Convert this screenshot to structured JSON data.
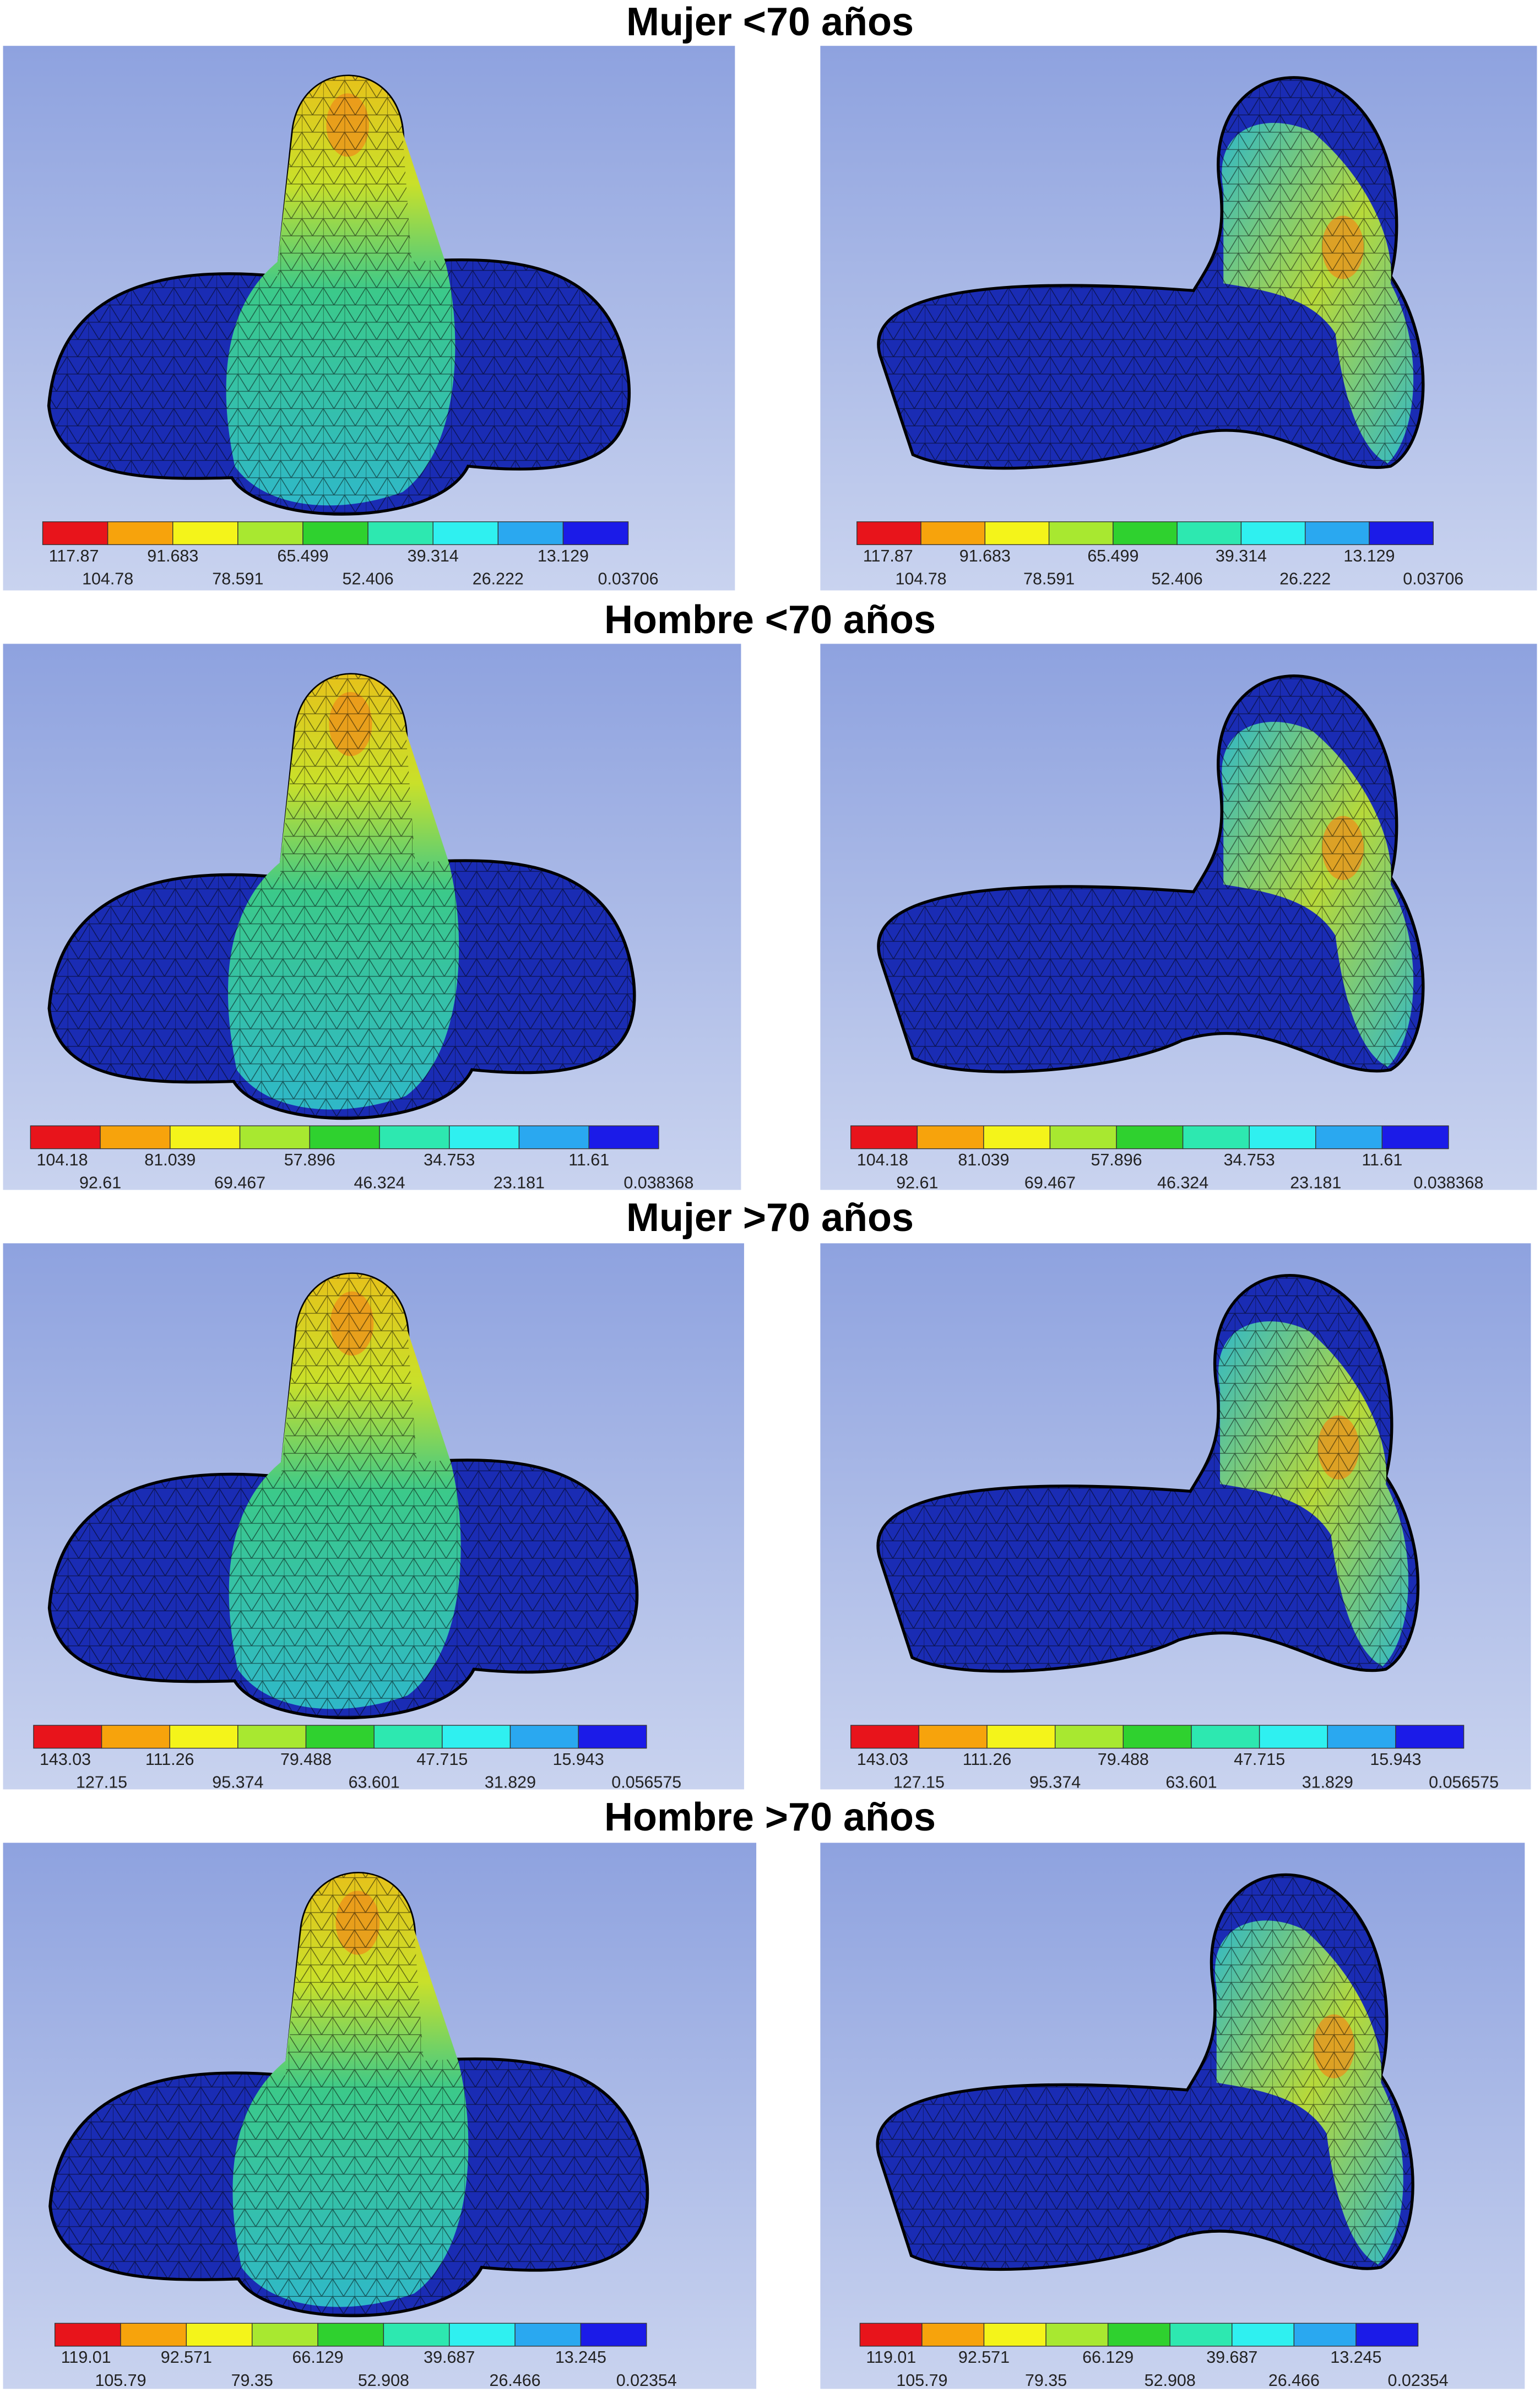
{
  "scale_colors": [
    "#e8141b",
    "#f7a30c",
    "#f4f41a",
    "#a8e830",
    "#2fd12f",
    "#2de8b0",
    "#2ff0f0",
    "#2aa8f0",
    "#1b1be8"
  ],
  "sections": [
    {
      "title": "Mujer <70 años",
      "scale_labels": [
        "117.87",
        "104.78",
        "91.683",
        "78.591",
        "65.499",
        "52.406",
        "39.314",
        "26.222",
        "13.129",
        "0.03706"
      ]
    },
    {
      "title": "Hombre <70 años",
      "scale_labels": [
        "104.18",
        "92.61",
        "81.039",
        "69.467",
        "57.896",
        "46.324",
        "34.753",
        "23.181",
        "11.61",
        "0.038368"
      ]
    },
    {
      "title": "Mujer >70 años",
      "scale_labels": [
        "143.03",
        "127.15",
        "111.26",
        "95.374",
        "79.488",
        "63.601",
        "47.715",
        "31.829",
        "15.943",
        "0.056575"
      ]
    },
    {
      "title": "Hombre >70 años",
      "scale_labels": [
        "119.01",
        "105.79",
        "92.571",
        "79.35",
        "66.129",
        "52.908",
        "39.687",
        "26.466",
        "13.245",
        "0.02354"
      ]
    }
  ]
}
